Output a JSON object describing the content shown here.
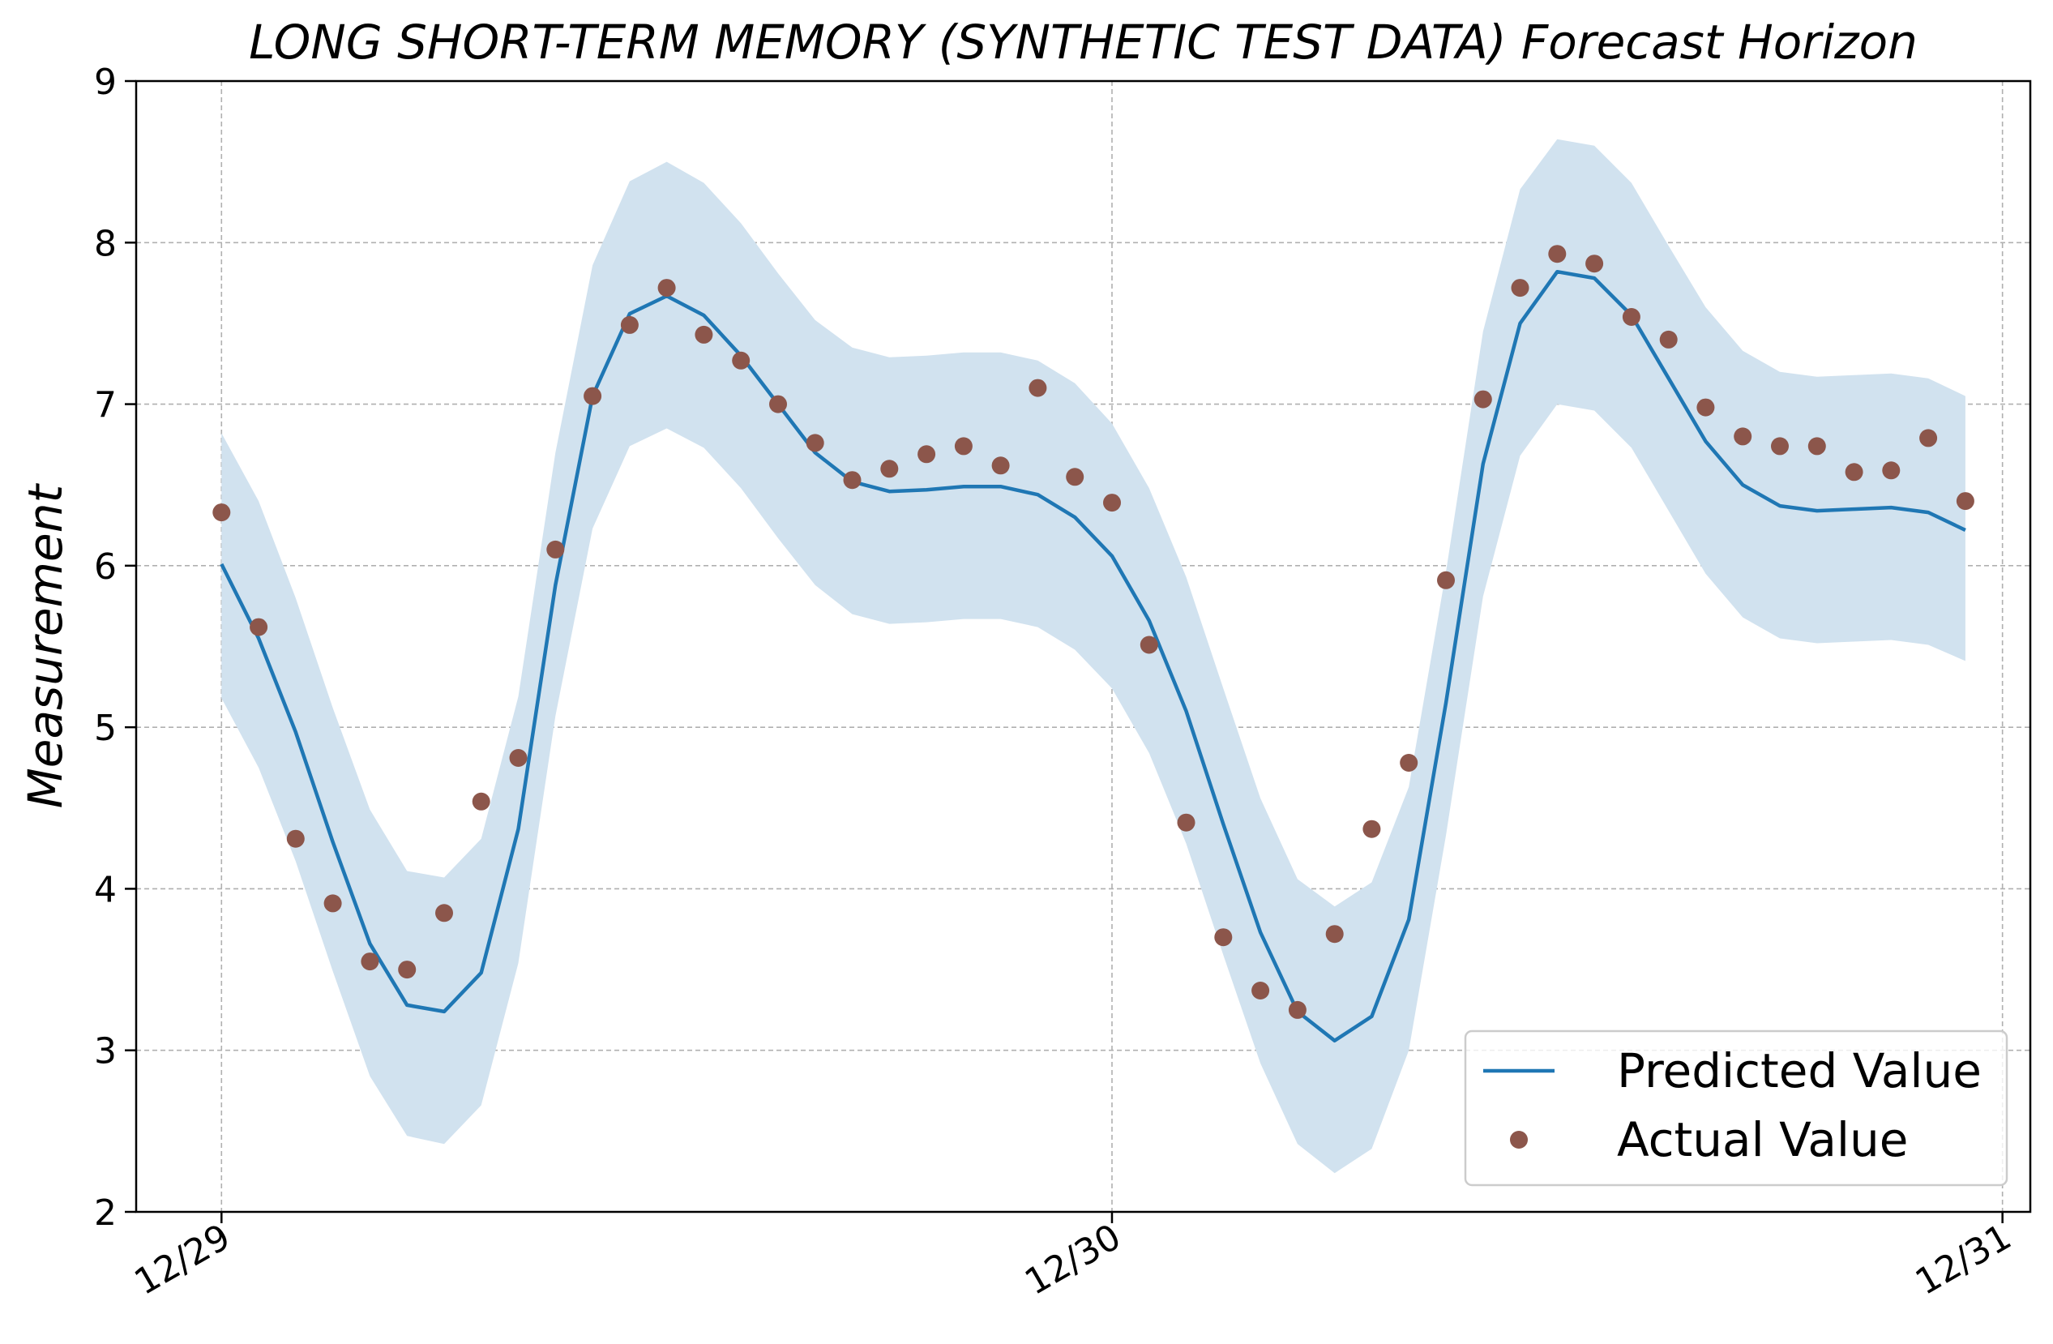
{
  "chart_data": {
    "type": "line",
    "title": "LONG SHORT-TERM MEMORY (SYNTHETIC TEST DATA) Forecast Horizon",
    "xlabel": "",
    "ylabel": "Measurement",
    "ylim": [
      2,
      9
    ],
    "xlim": [
      "12/28 21:42",
      "12/31 00:45"
    ],
    "yticks": [
      2,
      3,
      4,
      5,
      6,
      7,
      8,
      9
    ],
    "xticks": [
      {
        "value": "12/29 00:00",
        "label": "12/29"
      },
      {
        "value": "12/30 00:00",
        "label": "12/30"
      },
      {
        "value": "12/31 00:00",
        "label": "12/31"
      }
    ],
    "grid": true,
    "legend": "bottom-right",
    "colors": {
      "predicted": "#1f77b4",
      "actual": "#8c564b",
      "band": "#d1e2ef"
    },
    "x": [
      "12/29 00:00",
      "12/29 01:00",
      "12/29 02:00",
      "12/29 03:00",
      "12/29 04:00",
      "12/29 05:00",
      "12/29 06:00",
      "12/29 07:00",
      "12/29 08:00",
      "12/29 09:00",
      "12/29 10:00",
      "12/29 11:00",
      "12/29 12:00",
      "12/29 13:00",
      "12/29 14:00",
      "12/29 15:00",
      "12/29 16:00",
      "12/29 17:00",
      "12/29 18:00",
      "12/29 19:00",
      "12/29 20:00",
      "12/29 21:00",
      "12/29 22:00",
      "12/29 23:00",
      "12/30 00:00",
      "12/30 01:00",
      "12/30 02:00",
      "12/30 03:00",
      "12/30 04:00",
      "12/30 05:00",
      "12/30 06:00",
      "12/30 07:00",
      "12/30 08:00",
      "12/30 09:00",
      "12/30 10:00",
      "12/30 11:00",
      "12/30 12:00",
      "12/30 13:00",
      "12/30 14:00",
      "12/30 15:00",
      "12/30 16:00",
      "12/30 17:00",
      "12/30 18:00",
      "12/30 19:00",
      "12/30 20:00",
      "12/30 21:00",
      "12/30 22:00",
      "12/30 23:00"
    ],
    "series": [
      {
        "name": "Predicted Value",
        "style": "line",
        "values": [
          6.01,
          5.55,
          4.97,
          4.29,
          3.66,
          3.28,
          3.24,
          3.48,
          4.37,
          5.88,
          7.05,
          7.56,
          7.67,
          7.55,
          7.3,
          7.0,
          6.7,
          6.52,
          6.46,
          6.47,
          6.49,
          6.49,
          6.44,
          6.3,
          6.06,
          5.66,
          5.1,
          4.4,
          3.73,
          3.24,
          3.06,
          3.21,
          3.81,
          5.15,
          6.63,
          7.5,
          7.82,
          7.78,
          7.55,
          7.16,
          6.77,
          6.5,
          6.37,
          6.34,
          6.35,
          6.36,
          6.33,
          6.22
        ]
      },
      {
        "name": "Actual Value",
        "style": "scatter",
        "values": [
          6.33,
          5.62,
          4.31,
          3.91,
          3.55,
          3.5,
          3.85,
          4.54,
          4.81,
          6.1,
          7.05,
          7.49,
          7.72,
          7.43,
          7.27,
          7.0,
          6.76,
          6.53,
          6.6,
          6.69,
          6.74,
          6.62,
          7.1,
          6.55,
          6.39,
          5.51,
          4.41,
          3.7,
          3.37,
          3.25,
          3.72,
          4.37,
          4.78,
          5.91,
          7.03,
          7.72,
          7.93,
          7.87,
          7.54,
          7.4,
          6.98,
          6.8,
          6.74,
          6.74,
          6.58,
          6.59,
          6.79,
          6.4
        ]
      }
    ],
    "band": {
      "lower": [
        5.18,
        4.75,
        4.17,
        3.49,
        2.84,
        2.47,
        2.42,
        2.66,
        3.54,
        5.07,
        6.23,
        6.74,
        6.85,
        6.73,
        6.48,
        6.17,
        5.88,
        5.7,
        5.64,
        5.65,
        5.67,
        5.67,
        5.62,
        5.48,
        5.24,
        4.84,
        4.28,
        3.59,
        2.92,
        2.42,
        2.24,
        2.39,
        3.0,
        4.33,
        5.81,
        6.68,
        7.0,
        6.96,
        6.73,
        6.34,
        5.95,
        5.68,
        5.55,
        5.52,
        5.53,
        5.54,
        5.51,
        5.41
      ],
      "upper": [
        6.82,
        6.4,
        5.8,
        5.12,
        4.49,
        4.11,
        4.07,
        4.31,
        5.19,
        6.7,
        7.86,
        8.38,
        8.5,
        8.37,
        8.12,
        7.81,
        7.52,
        7.35,
        7.29,
        7.3,
        7.32,
        7.32,
        7.27,
        7.13,
        6.88,
        6.48,
        5.93,
        5.24,
        4.56,
        4.06,
        3.89,
        4.04,
        4.63,
        5.96,
        7.45,
        8.33,
        8.64,
        8.6,
        8.37,
        7.98,
        7.6,
        7.33,
        7.2,
        7.17,
        7.18,
        7.19,
        7.16,
        7.05
      ]
    }
  }
}
